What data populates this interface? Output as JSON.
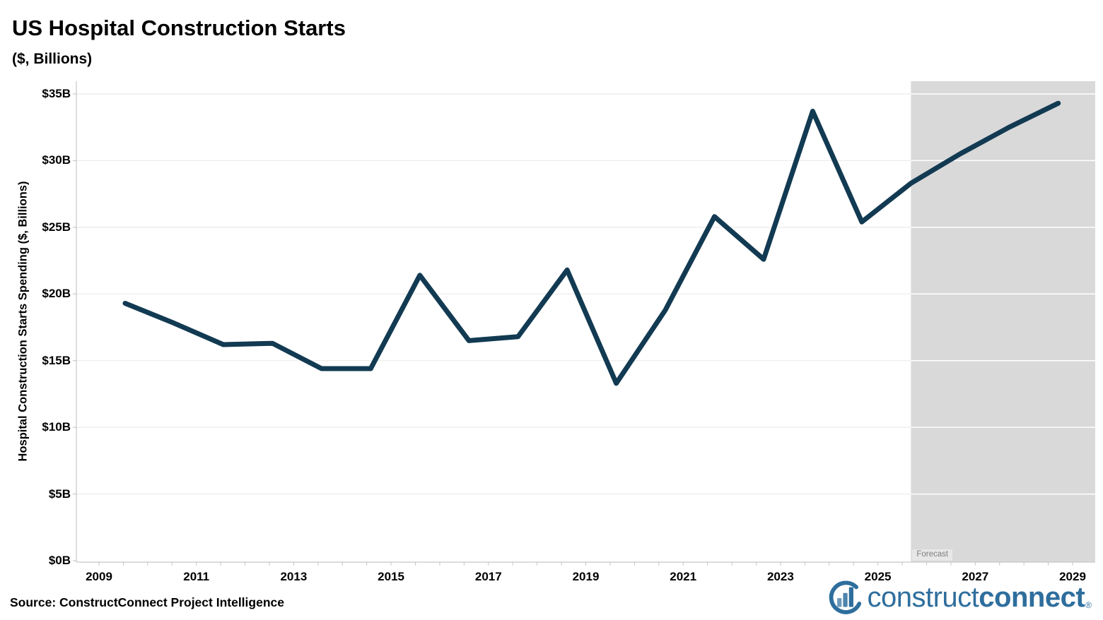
{
  "header": {
    "title": "US Hospital Construction Starts",
    "subtitle": "($, Billions)"
  },
  "footer": {
    "source": "Source: ConstructConnect Project Intelligence"
  },
  "logo": {
    "construct": "construct",
    "connect": "connect",
    "registered": "®",
    "color": "#2e6e9d"
  },
  "chart_data": {
    "type": "line",
    "title": "US Hospital Construction Starts",
    "subtitle": "($, Billions)",
    "xlabel": "",
    "ylabel": "Hospital Construction Starts Spending ($, Billions)",
    "series_name": "Hospital Construction Starts Spending",
    "x": [
      2009,
      2010,
      2011,
      2012,
      2013,
      2014,
      2015,
      2016,
      2017,
      2018,
      2019,
      2020,
      2021,
      2022,
      2023,
      2024,
      2025,
      2026,
      2027,
      2028
    ],
    "values": [
      19.3,
      17.8,
      16.2,
      16.3,
      14.4,
      14.4,
      21.4,
      16.5,
      16.8,
      21.8,
      13.3,
      18.8,
      25.8,
      22.6,
      33.7,
      25.4,
      28.3,
      30.5,
      32.5,
      34.3
    ],
    "ylim": [
      0,
      35
    ],
    "y_tick_values": [
      0,
      5,
      10,
      15,
      20,
      25,
      30,
      35
    ],
    "y_tick_labels": [
      "$0B",
      "$5B",
      "$10B",
      "$15B",
      "$20B",
      "$25B",
      "$30B",
      "$35B"
    ],
    "x_tick_years": [
      2009,
      2011,
      2013,
      2015,
      2017,
      2019,
      2021,
      2023,
      2025,
      2027,
      2029
    ],
    "x_tick_labels": [
      "2009",
      "2011",
      "2013",
      "2015",
      "2017",
      "2019",
      "2021",
      "2023",
      "2025",
      "2027",
      "2029"
    ],
    "grid": true,
    "legend": "none",
    "line_color": "#123a52",
    "gridline_color": "#ebebeb",
    "axis_color": "#c7c7c7",
    "forecast": {
      "label": "Forecast",
      "start_year": 2025,
      "end_year": 2028,
      "region_color": "#d9d9d9"
    }
  }
}
